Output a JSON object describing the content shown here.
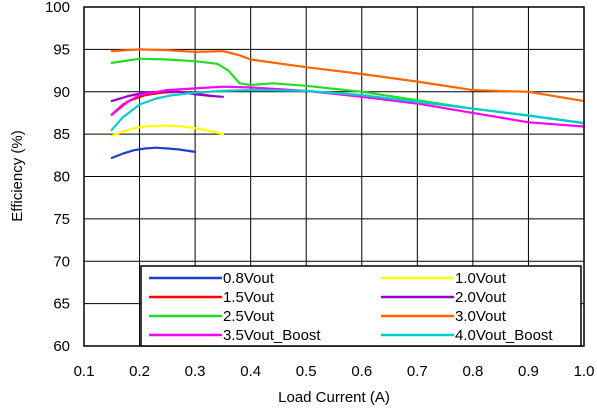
{
  "chart_data": {
    "type": "line",
    "title": "",
    "xlabel": "Load Current (A)",
    "ylabel": "Efficiency (%)",
    "xlim": [
      0.1,
      1.0
    ],
    "ylim": [
      60,
      100
    ],
    "xticks": [
      0.1,
      0.2,
      0.3,
      0.4,
      0.5,
      0.6,
      0.7,
      0.8,
      0.9,
      1.0
    ],
    "xtick_labels": [
      "0.1",
      "0.2",
      "0.3",
      "0.4",
      "0.5",
      "0.6",
      "0.7",
      "0.8",
      "0.9",
      "1.0"
    ],
    "yticks": [
      60,
      65,
      70,
      75,
      80,
      85,
      90,
      95,
      100
    ],
    "ytick_labels": [
      "60",
      "65",
      "70",
      "75",
      "80",
      "85",
      "90",
      "95",
      "100"
    ],
    "grid": true,
    "legend_position": "bottom, inside plot, two columns",
    "series": [
      {
        "name": "0.8Vout",
        "color": "#1f3fc8",
        "x": [
          0.15,
          0.17,
          0.19,
          0.21,
          0.23,
          0.25,
          0.27,
          0.3
        ],
        "y": [
          82.2,
          82.7,
          83.1,
          83.3,
          83.4,
          83.3,
          83.2,
          82.9
        ]
      },
      {
        "name": "1.0Vout",
        "color": "#ffff00",
        "x": [
          0.15,
          0.17,
          0.19,
          0.21,
          0.23,
          0.25,
          0.28,
          0.31,
          0.35
        ],
        "y": [
          84.8,
          85.3,
          85.7,
          85.9,
          86.0,
          86.0,
          85.9,
          85.6,
          85.0
        ]
      },
      {
        "name": "1.5Vout",
        "color": "#ff0000",
        "x": [
          0.15,
          0.18,
          0.21,
          0.24,
          0.27,
          0.3,
          0.33
        ],
        "y": [
          87.3,
          88.9,
          89.6,
          89.9,
          90.0,
          89.8,
          89.5
        ]
      },
      {
        "name": "2.0Vout",
        "color": "#9900cc",
        "x": [
          0.15,
          0.18,
          0.21,
          0.24,
          0.27,
          0.3,
          0.33,
          0.35
        ],
        "y": [
          88.9,
          89.5,
          89.9,
          90.0,
          90.0,
          89.7,
          89.5,
          89.4
        ]
      },
      {
        "name": "2.5Vout",
        "color": "#22dd22",
        "x": [
          0.15,
          0.2,
          0.25,
          0.3,
          0.34,
          0.36,
          0.38,
          0.4,
          0.44,
          0.5,
          0.6,
          0.7,
          0.8,
          0.9,
          1.0
        ],
        "y": [
          93.4,
          93.9,
          93.8,
          93.6,
          93.3,
          92.5,
          91.0,
          90.8,
          91.0,
          90.7,
          90.0,
          89.0,
          88.0,
          87.2,
          86.3
        ]
      },
      {
        "name": "3.0Vout",
        "color": "#ff6600",
        "x": [
          0.15,
          0.2,
          0.25,
          0.3,
          0.35,
          0.38,
          0.4,
          0.5,
          0.6,
          0.7,
          0.8,
          0.9,
          1.0
        ],
        "y": [
          94.8,
          95.0,
          94.9,
          94.7,
          94.8,
          94.3,
          93.8,
          92.9,
          92.1,
          91.2,
          90.2,
          90.0,
          88.9
        ]
      },
      {
        "name": "3.5Vout_Boost",
        "color": "#ff00ff",
        "x": [
          0.15,
          0.17,
          0.2,
          0.25,
          0.3,
          0.35,
          0.4,
          0.5,
          0.6,
          0.7,
          0.8,
          0.9,
          1.0
        ],
        "y": [
          87.3,
          88.5,
          89.6,
          90.2,
          90.4,
          90.6,
          90.5,
          90.1,
          89.4,
          88.6,
          87.5,
          86.4,
          85.9
        ]
      },
      {
        "name": "4.0Vout_Boost",
        "color": "#00cccc",
        "x": [
          0.15,
          0.17,
          0.2,
          0.23,
          0.26,
          0.3,
          0.35,
          0.4,
          0.5,
          0.6,
          0.7,
          0.8,
          0.9,
          1.0
        ],
        "y": [
          85.5,
          87.0,
          88.5,
          89.2,
          89.6,
          89.9,
          90.1,
          90.2,
          90.1,
          89.6,
          88.8,
          88.0,
          87.2,
          86.3
        ]
      }
    ]
  }
}
